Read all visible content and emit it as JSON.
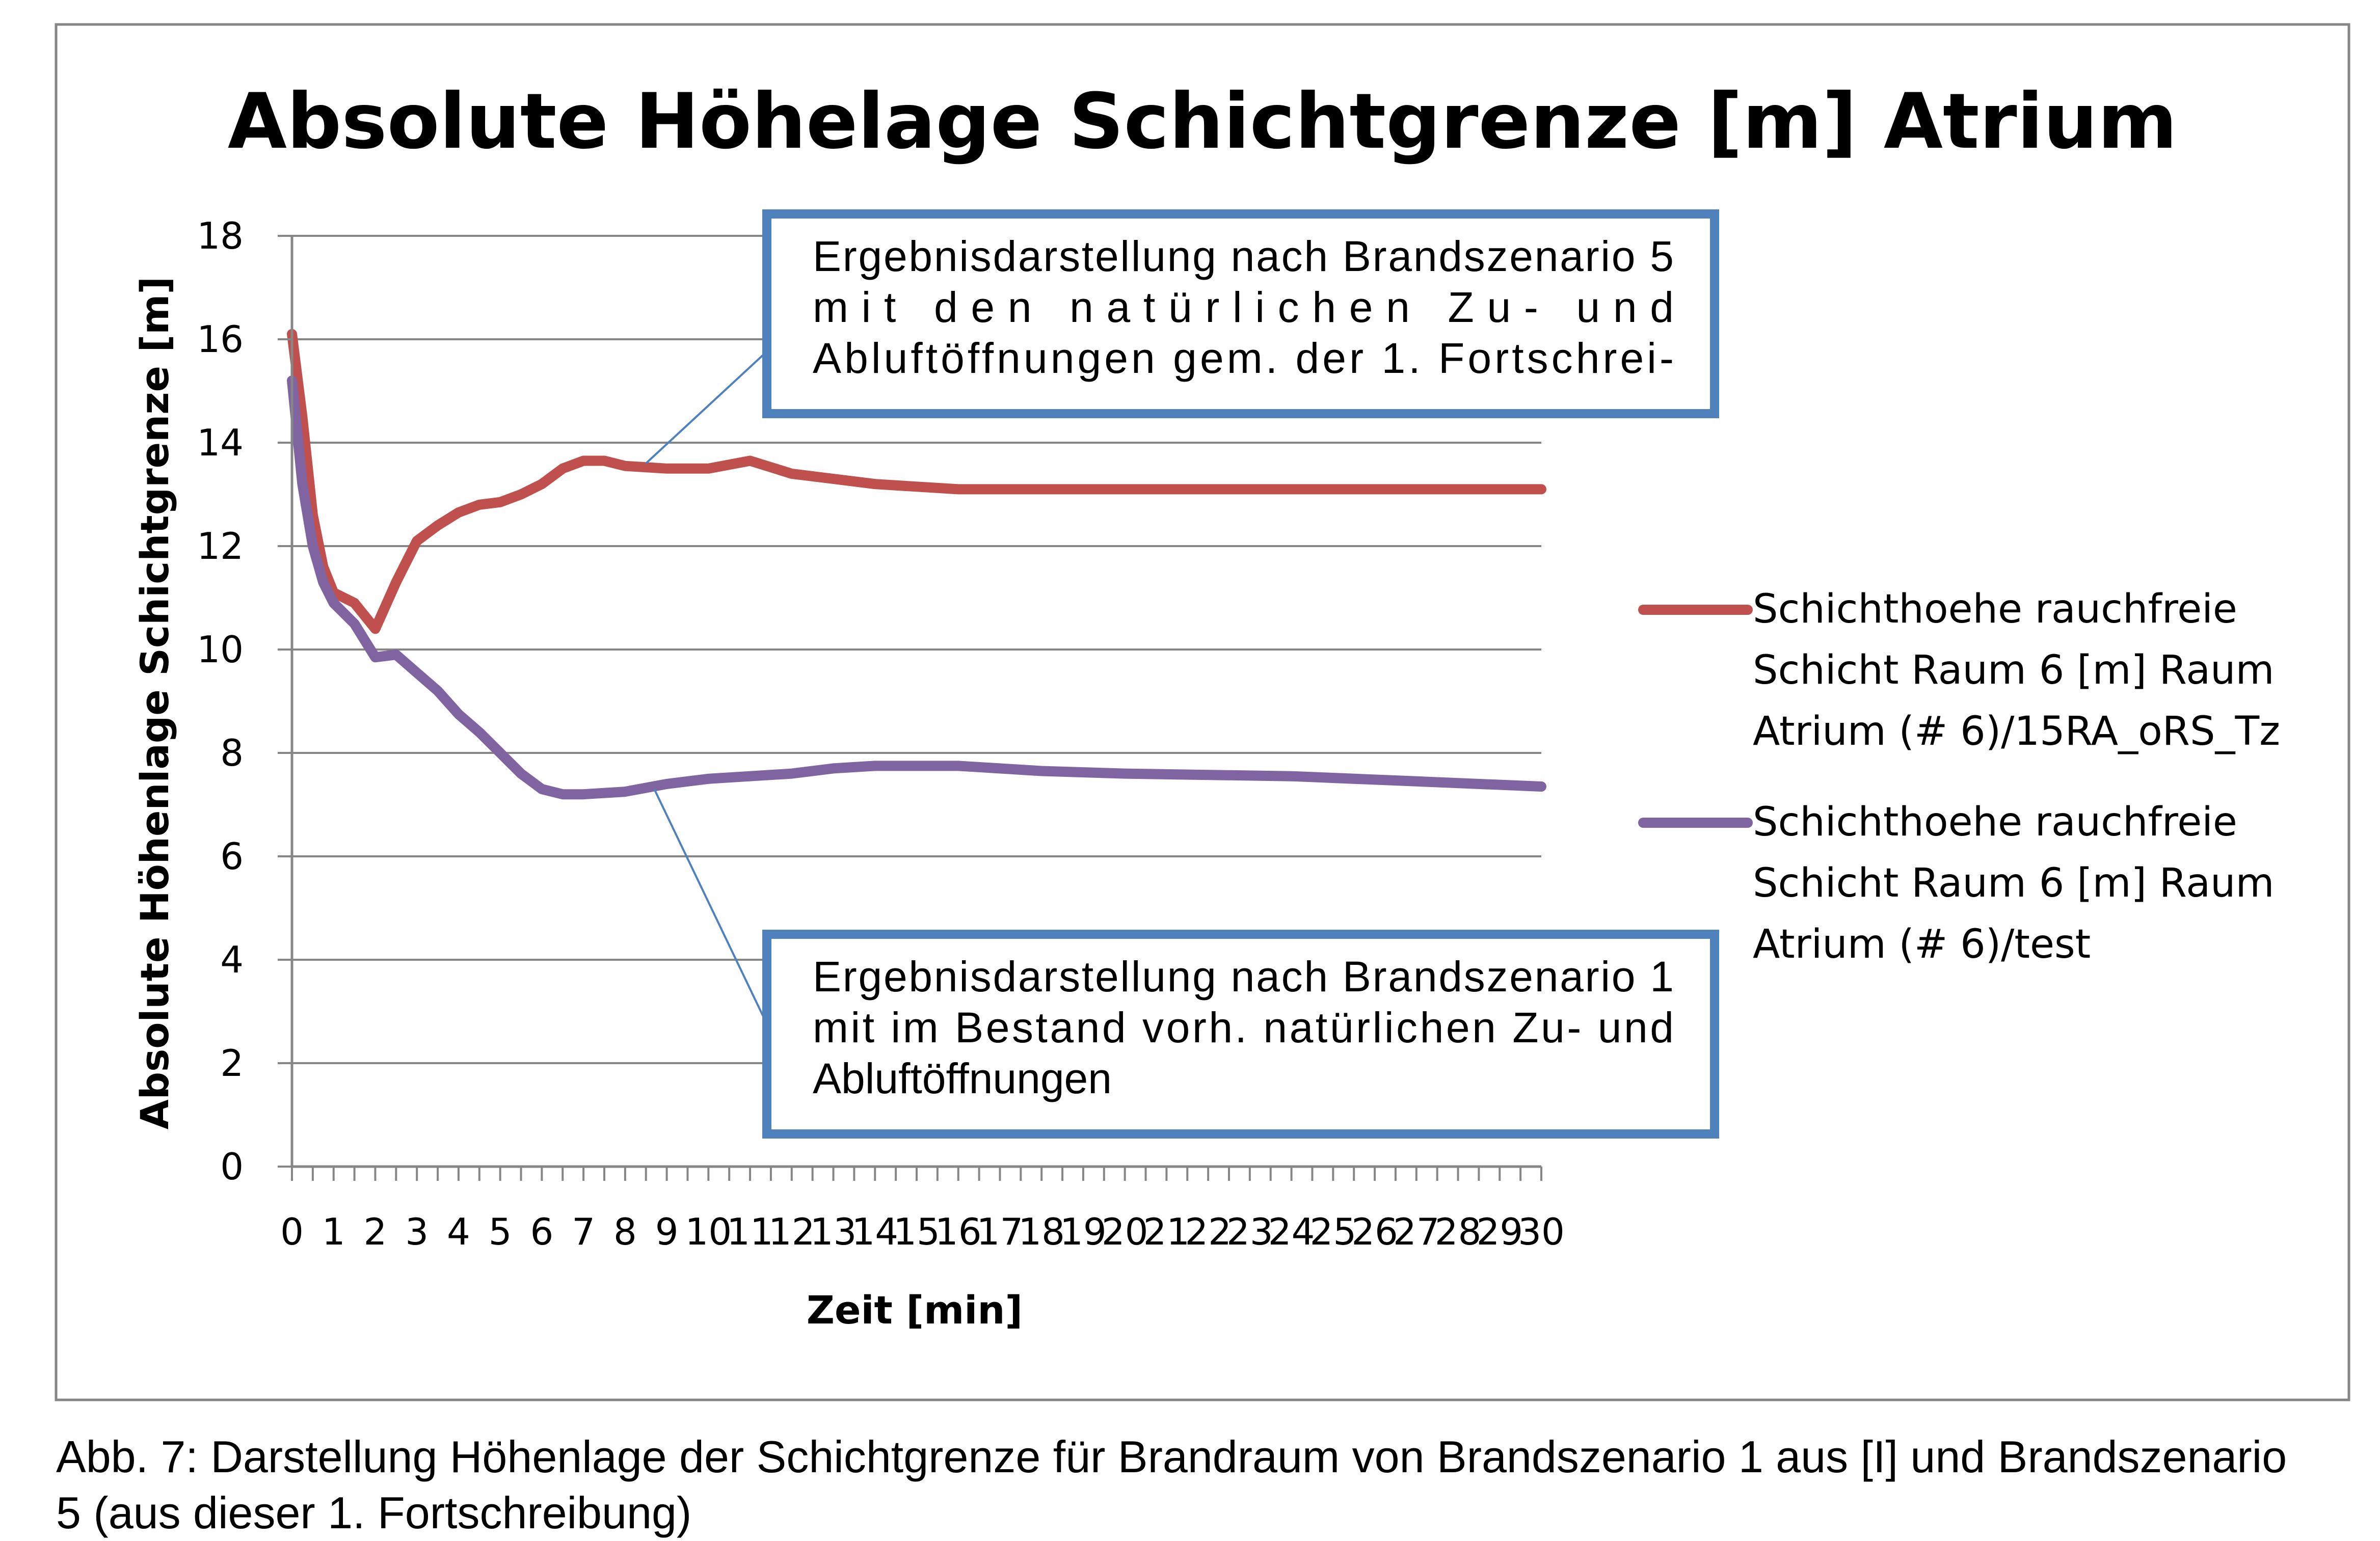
{
  "chart_data": {
    "type": "line",
    "title": "Absolute Höhelage Schichtgrenze [m] Atrium",
    "xlabel": "Zeit [min]",
    "ylabel": "Absolute Höhenlage Schichtgrenze [m]",
    "ylim": [
      0,
      18
    ],
    "yticks": [
      0,
      2,
      4,
      6,
      8,
      10,
      12,
      14,
      16,
      18
    ],
    "xlim": [
      0,
      30
    ],
    "x_ticks": [
      "0",
      "1",
      "2",
      "3",
      "4",
      "5",
      "6",
      "7",
      "8",
      "9",
      "10",
      "11",
      "12",
      "13",
      "14",
      "15",
      "16",
      "17",
      "18",
      "19",
      "20",
      "21",
      "22",
      "23",
      "24",
      "25",
      "26",
      "27",
      "28",
      "29",
      "30"
    ],
    "grid": "horizontal",
    "legend_position": "right",
    "series": [
      {
        "name_lines": [
          "Schichthoehe rauchfreie",
          "Schicht Raum 6 [m] Raum",
          "Atrium (# 6)/15RA_oRS_Tz"
        ],
        "color": "#c0504d",
        "x": [
          0,
          0.25,
          0.5,
          0.75,
          1,
          1.5,
          2,
          2.5,
          3,
          3.5,
          4,
          4.5,
          5,
          5.5,
          6,
          6.5,
          7,
          7.5,
          8,
          9,
          10,
          11,
          12,
          13,
          14,
          15,
          16,
          20,
          25,
          30
        ],
        "y": [
          16.1,
          14.5,
          12.6,
          11.6,
          11.1,
          10.9,
          10.4,
          11.3,
          12.1,
          12.4,
          12.65,
          12.8,
          12.85,
          13.0,
          13.2,
          13.5,
          13.65,
          13.65,
          13.55,
          13.5,
          13.5,
          13.65,
          13.4,
          13.3,
          13.2,
          13.15,
          13.1,
          13.1,
          13.1,
          13.1
        ]
      },
      {
        "name_lines": [
          "Schichthoehe rauchfreie",
          "Schicht Raum 6 [m] Raum",
          "Atrium (# 6)/test"
        ],
        "color": "#8064a2",
        "x": [
          0,
          0.25,
          0.5,
          0.75,
          1,
          1.5,
          2,
          2.5,
          3,
          3.5,
          4,
          4.5,
          5,
          5.5,
          6,
          6.5,
          7,
          8,
          9,
          10,
          11,
          12,
          13,
          14,
          15,
          16,
          18,
          20,
          24,
          27,
          30
        ],
        "y": [
          15.2,
          13.2,
          12.0,
          11.3,
          10.9,
          10.5,
          9.85,
          9.9,
          9.55,
          9.2,
          8.75,
          8.4,
          8.0,
          7.6,
          7.3,
          7.2,
          7.2,
          7.25,
          7.4,
          7.5,
          7.55,
          7.6,
          7.7,
          7.75,
          7.75,
          7.75,
          7.65,
          7.6,
          7.55,
          7.45,
          7.35
        ]
      }
    ],
    "annotations": [
      {
        "name": "annotation-scenario-5",
        "lines": [
          "Ergebnisdarstellung nach Brandszenario 5",
          "mit den natürlichen Zu- und",
          "Abluftöffnungen gem. der 1. Fortschrei-"
        ],
        "points_to": {
          "x": 8.5,
          "y": 13.6
        },
        "border_color": "#4f81bd"
      },
      {
        "name": "annotation-scenario-1",
        "lines": [
          "Ergebnisdarstellung nach Brandszenario 1",
          "mit im Bestand vorh. natürlichen Zu- und",
          "Abluftöffnungen"
        ],
        "points_to": {
          "x": 8.7,
          "y": 7.3
        },
        "border_color": "#4f81bd"
      }
    ]
  },
  "caption": {
    "line1": "Abb. 7: Darstellung Höhenlage der Schichtgrenze für Brandraum von Brandszenario 1 aus [I] und Brandszenario",
    "line2": "5 (aus dieser 1. Fortschreibung)"
  }
}
